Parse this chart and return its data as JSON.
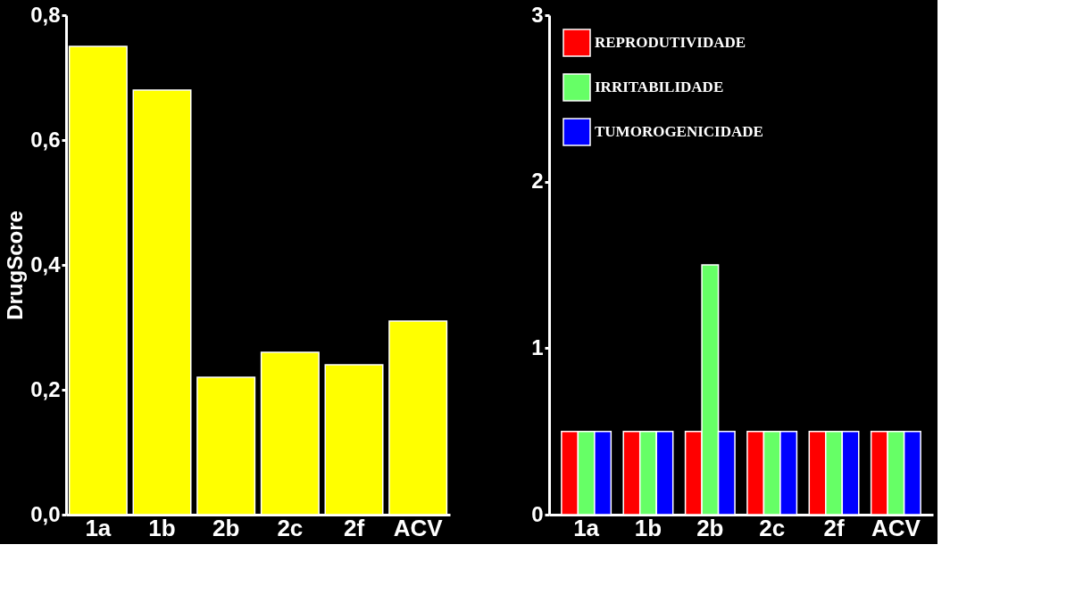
{
  "chart_data": [
    {
      "type": "bar",
      "ylabel": "DrugScore",
      "categories": [
        "1a",
        "1b",
        "2b",
        "2c",
        "2f",
        "ACV"
      ],
      "values": [
        0.75,
        0.68,
        0.22,
        0.26,
        0.24,
        0.31
      ],
      "color": "#ffff00",
      "ylim": [
        0,
        0.8
      ],
      "yticks": [
        {
          "value": 0,
          "label": "0,0"
        },
        {
          "value": 0.2,
          "label": "0,2"
        },
        {
          "value": 0.4,
          "label": "0,4"
        },
        {
          "value": 0.6,
          "label": "0,6"
        },
        {
          "value": 0.8,
          "label": "0,8"
        }
      ],
      "grid": false
    },
    {
      "type": "bar",
      "categories": [
        "1a",
        "1b",
        "2b",
        "2c",
        "2f",
        "ACV"
      ],
      "series": [
        {
          "name": "REPRODUTIVIDADE",
          "color": "#ff0000",
          "values": [
            0.5,
            0.5,
            0.5,
            0.5,
            0.5,
            0.5
          ]
        },
        {
          "name": "IRRITABILIDADE",
          "color": "#66ff66",
          "values": [
            0.5,
            0.5,
            1.5,
            0.5,
            0.5,
            0.5
          ]
        },
        {
          "name": "TUMOROGENICIDADE",
          "color": "#0000ff",
          "values": [
            0.5,
            0.5,
            0.5,
            0.5,
            0.5,
            0.5
          ]
        }
      ],
      "ylim": [
        0,
        3
      ],
      "yticks": [
        0,
        1,
        2,
        3
      ],
      "grid": false,
      "legend": "top left"
    }
  ]
}
